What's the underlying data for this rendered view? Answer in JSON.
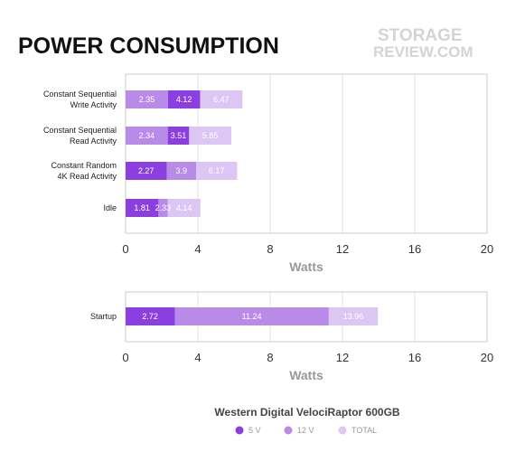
{
  "chart_data": [
    {
      "type": "bar",
      "orientation": "horizontal",
      "stacked": false,
      "title": "POWER CONSUMPTION",
      "categories": [
        "Constant Sequential\nWrite Activity",
        "Constant Sequential\nRead Activity",
        "Constant Random\n4K Read Activity",
        "Idle"
      ],
      "series": [
        {
          "name": "5 V",
          "values": [
            4.12,
            3.51,
            2.27,
            1.81
          ]
        },
        {
          "name": "12 V",
          "values": [
            2.35,
            2.34,
            3.9,
            2.33
          ]
        },
        {
          "name": "TOTAL",
          "values": [
            6.47,
            5.85,
            6.17,
            4.14
          ]
        }
      ],
      "xlabel": "Watts",
      "xlim": [
        0,
        20
      ],
      "xticks": [
        "0",
        "4",
        "8",
        "12",
        "16",
        "20"
      ],
      "grid": true
    },
    {
      "type": "bar",
      "orientation": "horizontal",
      "stacked": false,
      "categories": [
        "Startup"
      ],
      "series": [
        {
          "name": "5 V",
          "values": [
            2.72
          ]
        },
        {
          "name": "12 V",
          "values": [
            11.24
          ]
        },
        {
          "name": "TOTAL",
          "values": [
            13.96
          ]
        }
      ],
      "xlabel": "Watts",
      "xlim": [
        0,
        20
      ],
      "xticks": [
        "0",
        "4",
        "8",
        "12",
        "16",
        "20"
      ],
      "grid": true
    }
  ],
  "legend": {
    "title": "Western Digital VelociRaptor 600GB",
    "items": [
      {
        "name": "5 V",
        "color": "#8b3fe0"
      },
      {
        "name": "12 V",
        "color": "#b98be8"
      },
      {
        "name": "TOTAL",
        "color": "#dcc7f4"
      }
    ]
  },
  "watermark": {
    "line1": "STORAGE",
    "line2": "REVIEW.COM"
  }
}
